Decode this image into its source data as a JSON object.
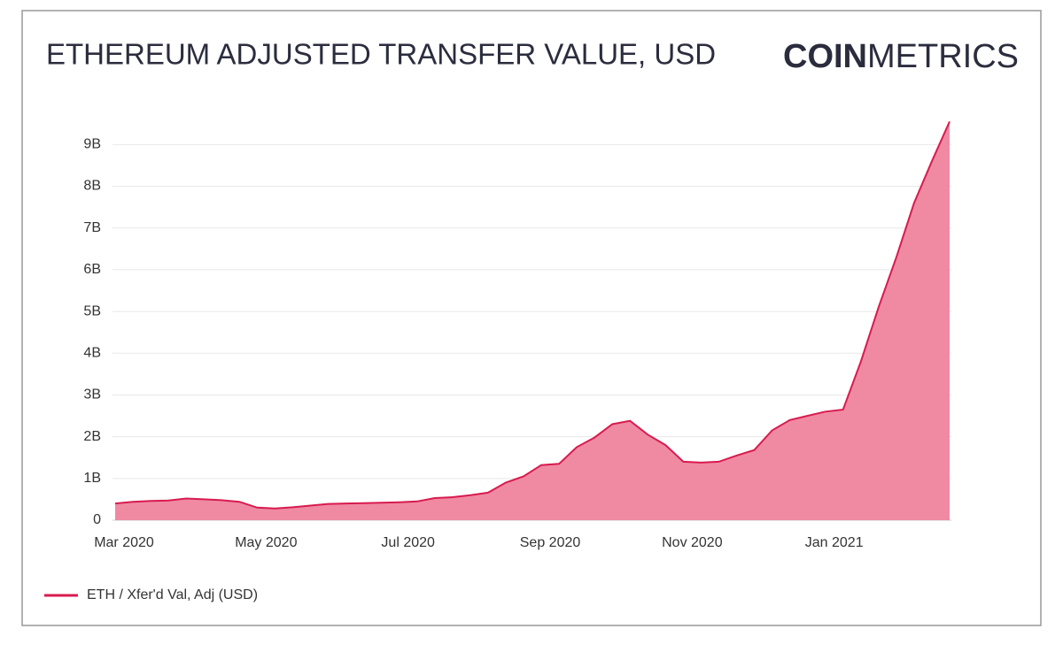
{
  "logo": {
    "bold": "COIN",
    "light": "METRICS"
  },
  "chart_data": {
    "type": "area",
    "title": "ETHEREUM ADJUSTED TRANSFER VALUE, USD",
    "categories": [
      "Mar 2020",
      null,
      null,
      null,
      null,
      null,
      null,
      null,
      "May 2020",
      null,
      null,
      null,
      null,
      null,
      null,
      null,
      "Jul 2020",
      null,
      null,
      null,
      null,
      null,
      null,
      null,
      "Sep 2020",
      null,
      null,
      null,
      null,
      null,
      null,
      null,
      "Nov 2020",
      null,
      null,
      null,
      null,
      null,
      null,
      null,
      "Jan 2021",
      null,
      null,
      null,
      null,
      null,
      null,
      null
    ],
    "series": [
      {
        "name": "ETH / Xfer'd Val, Adj (USD)",
        "color": "#d81b4f",
        "fill": "#ef8aa2",
        "values": [
          0.4,
          0.44,
          0.46,
          0.47,
          0.52,
          0.5,
          0.48,
          0.44,
          0.3,
          0.28,
          0.31,
          0.35,
          0.39,
          0.4,
          0.41,
          0.42,
          0.43,
          0.45,
          0.53,
          0.55,
          0.6,
          0.66,
          0.9,
          1.05,
          1.32,
          1.35,
          1.75,
          1.98,
          2.3,
          2.38,
          2.05,
          1.8,
          1.4,
          1.38,
          1.4,
          1.55,
          1.68,
          2.15,
          2.4,
          2.5,
          2.6,
          2.65,
          3.8,
          5.1,
          6.3,
          7.6,
          8.6,
          9.55
        ]
      }
    ],
    "ylim": [
      0,
      9.6
    ],
    "yticks": [
      0,
      {
        "value": 1,
        "label": "1B"
      },
      {
        "value": 2,
        "label": "2B"
      },
      {
        "value": 3,
        "label": "3B"
      },
      {
        "value": 4,
        "label": "4B"
      },
      {
        "value": 5,
        "label": "5B"
      },
      {
        "value": 6,
        "label": "6B"
      },
      {
        "value": 7,
        "label": "7B"
      },
      {
        "value": 8,
        "label": "8B"
      },
      {
        "value": 9,
        "label": "9B"
      }
    ],
    "grid": true,
    "legend": "bottom-left"
  }
}
